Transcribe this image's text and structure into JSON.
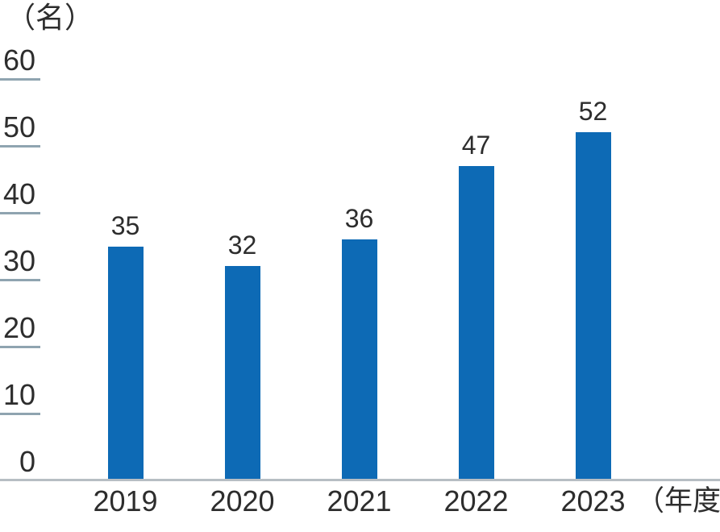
{
  "chart_data": {
    "type": "bar",
    "title": "",
    "unit_label": "（名）",
    "x_axis_suffix": "（年度）",
    "categories": [
      "2019",
      "2020",
      "2021",
      "2022",
      "2023"
    ],
    "values": [
      35,
      32,
      36,
      47,
      52
    ],
    "y_ticks": [
      0,
      10,
      20,
      30,
      40,
      50,
      60
    ],
    "ylim": [
      0,
      60
    ],
    "grid": "short-left-segments",
    "legend": "none",
    "data_labels": "above-bars",
    "colors": {
      "bar": "#0d6ab5",
      "gridline": "#8fa4b0",
      "axis_line": "#b7bec3",
      "text": "#2d2d2d"
    }
  }
}
